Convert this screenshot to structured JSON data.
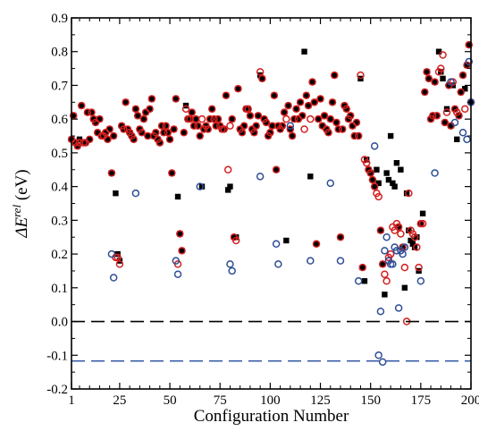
{
  "chart_data": {
    "type": "scatter",
    "title": "",
    "xlabel": "Configuration Number",
    "ylabel": "ΔE^rel (eV)",
    "ylabel_main": "ΔE",
    "ylabel_sup": "rel",
    "ylabel_unit": " (eV)",
    "xlim": [
      1,
      200
    ],
    "ylim": [
      -0.2,
      0.9
    ],
    "x_ticks": [
      1,
      25,
      50,
      75,
      100,
      125,
      150,
      175,
      200
    ],
    "x_minor_step": 5,
    "y_ticks": [
      -0.2,
      -0.1,
      0.0,
      0.1,
      0.2,
      0.3,
      0.4,
      0.5,
      0.6,
      0.7,
      0.8,
      0.9
    ],
    "y_tick_labels": [
      "-0.2",
      "-0.1",
      "0.0",
      "0.1",
      "0.2",
      "0.3",
      "0.4",
      "0.5",
      "0.6",
      "0.7",
      "0.8",
      "0.9"
    ],
    "reference_lines": [
      {
        "y": 0.0,
        "color": "#000000",
        "style": "dashed"
      },
      {
        "y": -0.117,
        "color": "#3a5fa8",
        "style": "dashed"
      }
    ],
    "grid": false,
    "legend": "none",
    "series": [
      {
        "marker": "filled-square",
        "color": "#000000",
        "x": [
          1,
          2,
          3,
          4,
          5,
          6,
          7,
          8,
          9,
          10,
          11,
          12,
          13,
          14,
          15,
          16,
          17,
          18,
          19,
          20,
          21,
          22,
          23,
          24,
          25,
          26,
          27,
          28,
          29,
          30,
          31,
          32,
          33,
          34,
          35,
          36,
          37,
          38,
          39,
          40,
          41,
          42,
          43,
          44,
          45,
          46,
          47,
          48,
          49,
          50,
          51,
          52,
          53,
          54,
          55,
          56,
          57,
          58,
          59,
          60,
          61,
          62,
          63,
          64,
          65,
          66,
          67,
          68,
          69,
          70,
          71,
          72,
          73,
          74,
          75,
          76,
          77,
          78,
          79,
          80,
          81,
          82,
          83,
          84,
          85,
          86,
          87,
          88,
          89,
          90,
          91,
          92,
          93,
          94,
          95,
          96,
          97,
          98,
          99,
          100,
          101,
          102,
          103,
          104,
          105,
          106,
          107,
          108,
          109,
          110,
          111,
          112,
          113,
          114,
          115,
          116,
          117,
          118,
          119,
          120,
          121,
          122,
          123,
          124,
          125,
          126,
          127,
          128,
          129,
          130,
          131,
          132,
          133,
          134,
          135,
          136,
          137,
          138,
          139,
          140,
          141,
          142,
          143,
          144,
          145,
          146,
          147,
          148,
          149,
          150,
          151,
          152,
          153,
          154,
          155,
          156,
          157,
          158,
          159,
          160,
          161,
          162,
          163,
          164,
          165,
          166,
          167,
          168,
          169,
          170,
          171,
          172,
          173,
          174,
          175,
          176,
          177,
          178,
          179,
          180,
          181,
          182,
          183,
          184,
          185,
          186,
          187,
          188,
          189,
          190,
          191,
          192,
          193,
          194,
          195,
          196,
          197,
          198,
          199,
          200
        ],
        "y": [
          0.54,
          0.61,
          0.53,
          0.52,
          0.54,
          0.64,
          0.53,
          0.53,
          0.62,
          0.54,
          0.62,
          0.6,
          0.59,
          0.56,
          0.6,
          0.55,
          0.55,
          0.56,
          0.54,
          0.57,
          0.44,
          0.55,
          0.38,
          0.2,
          0.18,
          0.58,
          0.57,
          0.65,
          0.57,
          0.56,
          0.55,
          0.54,
          0.63,
          0.61,
          0.57,
          0.56,
          0.6,
          0.62,
          0.55,
          0.63,
          0.66,
          0.55,
          0.56,
          0.54,
          0.53,
          0.58,
          0.56,
          0.58,
          0.56,
          0.54,
          0.44,
          0.57,
          0.66,
          0.37,
          0.26,
          0.21,
          0.56,
          0.64,
          0.6,
          0.6,
          0.62,
          0.58,
          0.6,
          0.58,
          0.55,
          0.4,
          0.57,
          0.58,
          0.57,
          0.6,
          0.63,
          0.6,
          0.58,
          0.6,
          0.58,
          0.57,
          0.57,
          0.67,
          0.39,
          0.4,
          0.6,
          0.25,
          0.25,
          0.69,
          0.57,
          0.56,
          0.58,
          0.63,
          0.63,
          0.61,
          0.57,
          0.56,
          0.58,
          0.61,
          0.73,
          0.72,
          0.6,
          0.59,
          0.55,
          0.56,
          0.58,
          0.67,
          0.45,
          0.58,
          0.57,
          0.58,
          0.62,
          0.24,
          0.64,
          0.57,
          0.55,
          0.6,
          0.63,
          0.6,
          0.65,
          0.61,
          0.8,
          0.67,
          0.64,
          0.43,
          0.71,
          0.65,
          0.23,
          0.6,
          0.66,
          0.58,
          0.61,
          0.57,
          0.56,
          0.6,
          0.65,
          0.73,
          0.59,
          0.57,
          0.25,
          0.57,
          0.64,
          0.63,
          0.6,
          0.61,
          0.58,
          0.55,
          0.59,
          0.55,
          0.72,
          0.16,
          0.12,
          0.48,
          0.45,
          0.44,
          0.42,
          0.4,
          0.45,
          0.41,
          0.27,
          0.17,
          0.08,
          0.44,
          0.42,
          0.55,
          0.41,
          0.4,
          0.47,
          0.28,
          0.45,
          0.22,
          0.1,
          0.38,
          0.27,
          0.24,
          0.23,
          0.22,
          0.25,
          0.15,
          0.29,
          0.32,
          0.68,
          0.74,
          0.72,
          0.6,
          0.61,
          0.71,
          0.61,
          0.8,
          0.74,
          0.72,
          0.59,
          0.63,
          0.7,
          0.58,
          0.7,
          0.63,
          0.54,
          0.61,
          0.68,
          0.73,
          0.69,
          0.76,
          0.82,
          0.65
        ]
      },
      {
        "marker": "open-circle",
        "color": "#d42020",
        "x": [
          1,
          2,
          3,
          4,
          5,
          6,
          7,
          8,
          9,
          10,
          11,
          12,
          13,
          14,
          15,
          16,
          17,
          18,
          19,
          20,
          21,
          22,
          23,
          24,
          25,
          26,
          27,
          28,
          29,
          30,
          31,
          32,
          33,
          34,
          35,
          36,
          37,
          38,
          39,
          40,
          41,
          42,
          43,
          44,
          45,
          46,
          47,
          48,
          49,
          50,
          51,
          52,
          53,
          54,
          55,
          56,
          57,
          58,
          59,
          60,
          61,
          62,
          63,
          64,
          65,
          66,
          67,
          68,
          69,
          70,
          71,
          72,
          73,
          74,
          75,
          76,
          77,
          78,
          79,
          80,
          81,
          82,
          83,
          84,
          85,
          86,
          87,
          88,
          89,
          90,
          91,
          92,
          93,
          94,
          95,
          96,
          97,
          98,
          99,
          100,
          101,
          102,
          103,
          104,
          105,
          106,
          107,
          108,
          109,
          110,
          111,
          112,
          113,
          114,
          115,
          116,
          117,
          118,
          119,
          120,
          121,
          122,
          123,
          124,
          125,
          126,
          127,
          128,
          129,
          130,
          131,
          132,
          133,
          134,
          135,
          136,
          137,
          138,
          139,
          140,
          141,
          142,
          143,
          144,
          145,
          146,
          147,
          148,
          149,
          150,
          151,
          152,
          153,
          154,
          155,
          156,
          157,
          158,
          159,
          160,
          161,
          162,
          163,
          164,
          165,
          166,
          167,
          168,
          169,
          170,
          171,
          172,
          173,
          174,
          175,
          176,
          177,
          178,
          179,
          180,
          181,
          182,
          183,
          184,
          185,
          186,
          187,
          188,
          189,
          190,
          191,
          192,
          193,
          194,
          195,
          196,
          197,
          198,
          199,
          200
        ],
        "y": [
          0.54,
          0.61,
          0.53,
          0.52,
          0.53,
          0.64,
          0.53,
          0.53,
          0.62,
          0.54,
          0.62,
          0.6,
          0.59,
          0.56,
          0.6,
          0.55,
          0.55,
          0.56,
          0.54,
          0.57,
          0.44,
          0.55,
          0.19,
          0.19,
          0.17,
          0.58,
          0.57,
          0.65,
          0.57,
          0.56,
          0.55,
          0.54,
          0.63,
          0.61,
          0.57,
          0.56,
          0.6,
          0.62,
          0.55,
          0.63,
          0.66,
          0.55,
          0.56,
          0.54,
          0.53,
          0.58,
          0.56,
          0.58,
          0.56,
          0.54,
          0.44,
          0.57,
          0.66,
          0.17,
          0.26,
          0.21,
          0.56,
          0.63,
          0.6,
          0.6,
          0.62,
          0.58,
          0.6,
          0.58,
          0.55,
          0.6,
          0.57,
          0.58,
          0.57,
          0.6,
          0.63,
          0.6,
          0.58,
          0.6,
          0.58,
          0.57,
          0.57,
          0.67,
          0.45,
          0.58,
          0.6,
          0.25,
          0.24,
          0.69,
          0.57,
          0.56,
          0.58,
          0.63,
          0.63,
          0.61,
          0.57,
          0.56,
          0.58,
          0.61,
          0.74,
          0.72,
          0.6,
          0.59,
          0.55,
          0.56,
          0.58,
          0.67,
          0.45,
          0.58,
          0.57,
          0.58,
          0.62,
          0.6,
          0.64,
          0.57,
          0.55,
          0.6,
          0.63,
          0.6,
          0.65,
          0.61,
          0.57,
          0.67,
          0.64,
          0.6,
          0.71,
          0.65,
          0.23,
          0.6,
          0.66,
          0.58,
          0.61,
          0.57,
          0.56,
          0.6,
          0.65,
          0.73,
          0.59,
          0.57,
          0.25,
          0.57,
          0.64,
          0.63,
          0.6,
          0.61,
          0.58,
          0.55,
          0.59,
          0.55,
          0.73,
          0.16,
          0.48,
          0.47,
          0.45,
          0.44,
          0.42,
          0.4,
          0.38,
          0.37,
          0.27,
          0.17,
          0.14,
          0.12,
          0.19,
          0.2,
          0.28,
          0.27,
          0.29,
          0.28,
          0.26,
          0.22,
          0.16,
          0.0,
          0.38,
          0.27,
          0.26,
          0.25,
          0.22,
          0.16,
          0.29,
          0.29,
          0.68,
          0.74,
          0.72,
          0.6,
          0.61,
          0.71,
          0.61,
          0.74,
          0.75,
          0.79,
          0.59,
          0.62,
          0.7,
          0.58,
          0.71,
          0.63,
          0.62,
          0.61,
          0.68,
          0.73,
          0.63,
          0.76,
          0.82,
          0.65
        ]
      },
      {
        "marker": "open-circle",
        "color": "#2f4e96",
        "x": [
          21,
          22,
          33,
          53,
          54,
          65,
          80,
          81,
          95,
          103,
          104,
          110,
          120,
          130,
          135,
          144,
          152,
          154,
          155,
          156,
          157,
          158,
          159,
          160,
          161,
          162,
          163,
          164,
          165,
          166,
          167,
          175,
          182,
          190,
          192,
          196,
          198,
          199,
          200
        ],
        "y": [
          0.2,
          0.13,
          0.38,
          0.18,
          0.14,
          0.4,
          0.17,
          0.15,
          0.43,
          0.23,
          0.17,
          0.58,
          0.18,
          0.41,
          0.18,
          0.12,
          0.52,
          -0.1,
          0.03,
          -0.12,
          0.21,
          0.25,
          0.18,
          0.17,
          0.17,
          0.22,
          0.21,
          0.04,
          0.21,
          0.2,
          0.22,
          0.12,
          0.44,
          0.71,
          0.59,
          0.56,
          0.54,
          0.77,
          0.65
        ]
      }
    ]
  }
}
